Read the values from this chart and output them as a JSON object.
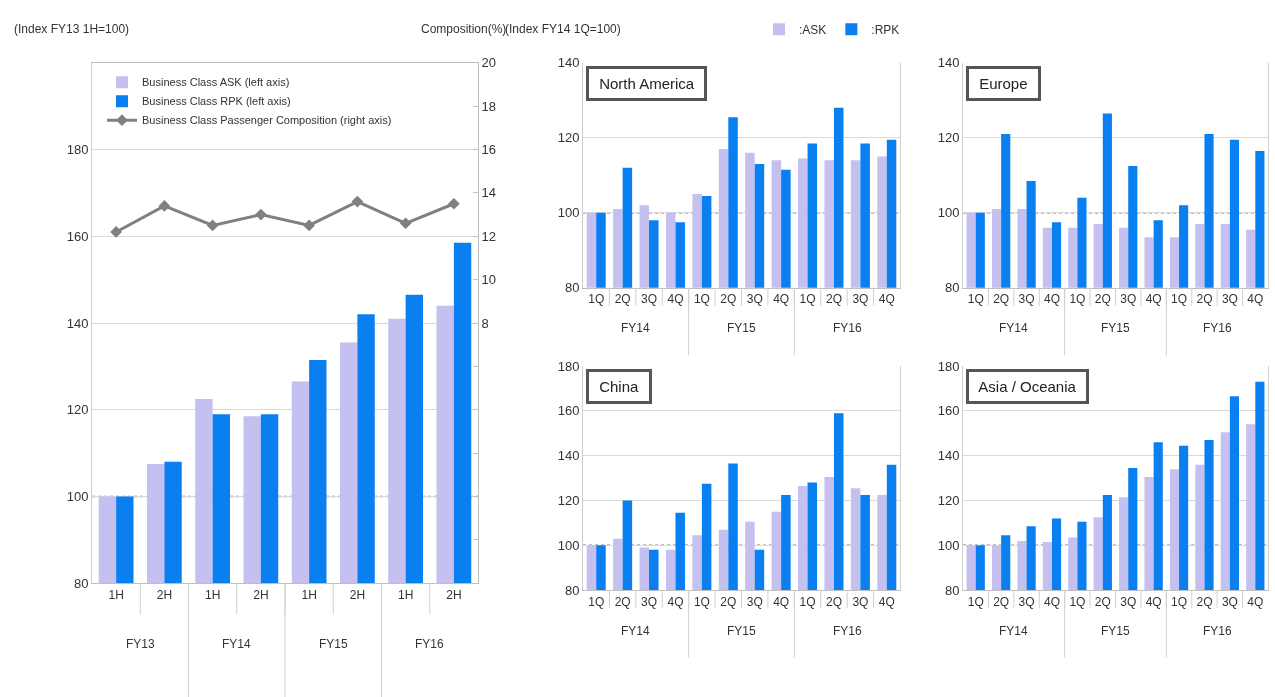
{
  "chart_data": [
    {
      "type": "bar",
      "ylabel": "(Index FY13 1H=100)",
      "y2label": "Composition(%)",
      "categories": [
        "1H",
        "2H",
        "1H",
        "2H",
        "1H",
        "2H",
        "1H",
        "2H"
      ],
      "annotations": [
        "FY13",
        "FY14",
        "FY15",
        "FY16"
      ],
      "series": [
        {
          "name": "Business Class ASK (left axis)",
          "color": "#c4c0f0",
          "values": [
            100,
            107.5,
            122.5,
            118.5,
            126.5,
            135.5,
            141,
            144
          ]
        },
        {
          "name": "Business Class RPK (left axis)",
          "color": "#0a7ff0",
          "values": [
            100,
            108,
            119,
            119,
            131.5,
            142,
            146.5,
            158.5
          ]
        },
        {
          "name": "Business Class Passenger Composition (right axis)",
          "type": "line",
          "axis": "y2",
          "color": "#808080",
          "marker": "diamond",
          "values": [
            12.2,
            13.4,
            12.5,
            13.0,
            12.5,
            13.6,
            12.6,
            13.5
          ]
        }
      ],
      "ylim": [
        80,
        200
      ],
      "yticks": [
        80,
        100,
        120,
        140,
        160,
        180
      ],
      "y2lim": [
        -4,
        20
      ],
      "y2ticks": [
        {
          "value": -2,
          "label": null
        },
        {
          "value": 0,
          "label": null
        },
        {
          "value": 2,
          "label": null
        },
        {
          "value": 4,
          "label": null
        },
        {
          "value": 6,
          "label": null
        },
        8,
        10,
        12,
        14,
        16,
        18,
        20
      ],
      "ref_lines": [
        {
          "axis": "y",
          "value": 100,
          "line_style": "dotted",
          "color": "#808080"
        }
      ],
      "grid": "y",
      "legend": "top left"
    },
    {
      "type": "bar",
      "title": "North America",
      "ylabel": "(Index FY14 1Q=100)",
      "categories": [
        "1Q",
        "2Q",
        "3Q",
        "4Q",
        "1Q",
        "2Q",
        "3Q",
        "4Q",
        "1Q",
        "2Q",
        "3Q",
        "4Q"
      ],
      "annotations": [
        "FY14",
        "FY15",
        "FY16"
      ],
      "series": [
        {
          "name": ":ASK",
          "color": "#c4c0f0",
          "values": [
            100,
            101,
            102,
            100,
            105,
            117,
            116,
            114,
            114.5,
            114,
            114,
            115
          ]
        },
        {
          "name": ":RPK",
          "color": "#0a7ff0",
          "values": [
            100,
            112,
            98,
            97.5,
            104.5,
            125.5,
            113,
            111.5,
            118.5,
            128,
            118.5,
            119.5
          ]
        }
      ],
      "ylim": [
        80,
        140
      ],
      "yticks": [
        80,
        100,
        120,
        140
      ],
      "ref_lines": [
        {
          "axis": "y",
          "value": 100,
          "line_style": "dotted",
          "color": "#808080"
        }
      ],
      "grid": "y",
      "legend": "top right"
    },
    {
      "type": "bar",
      "title": "Europe",
      "categories": [
        "1Q",
        "2Q",
        "3Q",
        "4Q",
        "1Q",
        "2Q",
        "3Q",
        "4Q",
        "1Q",
        "2Q",
        "3Q",
        "4Q"
      ],
      "annotations": [
        "FY14",
        "FY15",
        "FY16"
      ],
      "series": [
        {
          "color": "#c4c0f0",
          "values": [
            100,
            101,
            101,
            96,
            96,
            97,
            96,
            93.5,
            93.5,
            97,
            97,
            95.5
          ]
        },
        {
          "color": "#0a7ff0",
          "values": [
            100,
            121,
            108.5,
            97.5,
            104,
            126.5,
            112.5,
            98,
            102,
            121,
            119.5,
            116.5
          ]
        }
      ],
      "ylim": [
        80,
        140
      ],
      "yticks": [
        80,
        100,
        120,
        140
      ],
      "ref_lines": [
        {
          "axis": "y",
          "value": 100,
          "line_style": "dotted",
          "color": "#808080"
        }
      ],
      "grid": "y"
    },
    {
      "type": "bar",
      "title": "China",
      "categories": [
        "1Q",
        "2Q",
        "3Q",
        "4Q",
        "1Q",
        "2Q",
        "3Q",
        "4Q",
        "1Q",
        "2Q",
        "3Q",
        "4Q"
      ],
      "annotations": [
        "FY14",
        "FY15",
        "FY16"
      ],
      "series": [
        {
          "color": "#c4c0f0",
          "values": [
            100,
            103,
            99,
            98,
            104.5,
            107,
            110.5,
            115,
            126.5,
            130.5,
            125.5,
            122.5
          ]
        },
        {
          "color": "#0a7ff0",
          "values": [
            100,
            120,
            98,
            114.5,
            127.5,
            136.5,
            98,
            122.5,
            128,
            159,
            122.5,
            136
          ]
        }
      ],
      "ylim": [
        80,
        180
      ],
      "yticks": [
        80,
        100,
        120,
        140,
        160,
        180
      ],
      "ref_lines": [
        {
          "axis": "y",
          "value": 100,
          "line_style": "dotted",
          "color": "#808080"
        }
      ],
      "grid": "y"
    },
    {
      "type": "bar",
      "title": "Asia / Oceania",
      "categories": [
        "1Q",
        "2Q",
        "3Q",
        "4Q",
        "1Q",
        "2Q",
        "3Q",
        "4Q",
        "1Q",
        "2Q",
        "3Q",
        "4Q"
      ],
      "annotations": [
        "FY14",
        "FY15",
        "FY16"
      ],
      "series": [
        {
          "color": "#c4c0f0",
          "values": [
            100,
            100,
            102,
            101.5,
            103.5,
            112.5,
            121.5,
            130.5,
            134,
            136,
            150.5,
            154
          ]
        },
        {
          "color": "#0a7ff0",
          "values": [
            100,
            104.5,
            108.5,
            112,
            110.5,
            122.5,
            134.5,
            146,
            144.5,
            147,
            166.5,
            173
          ]
        }
      ],
      "ylim": [
        80,
        180
      ],
      "yticks": [
        80,
        100,
        120,
        140,
        160,
        180
      ],
      "ref_lines": [
        {
          "axis": "y",
          "value": 100,
          "line_style": "dotted",
          "color": "#808080"
        }
      ],
      "grid": "y"
    }
  ]
}
